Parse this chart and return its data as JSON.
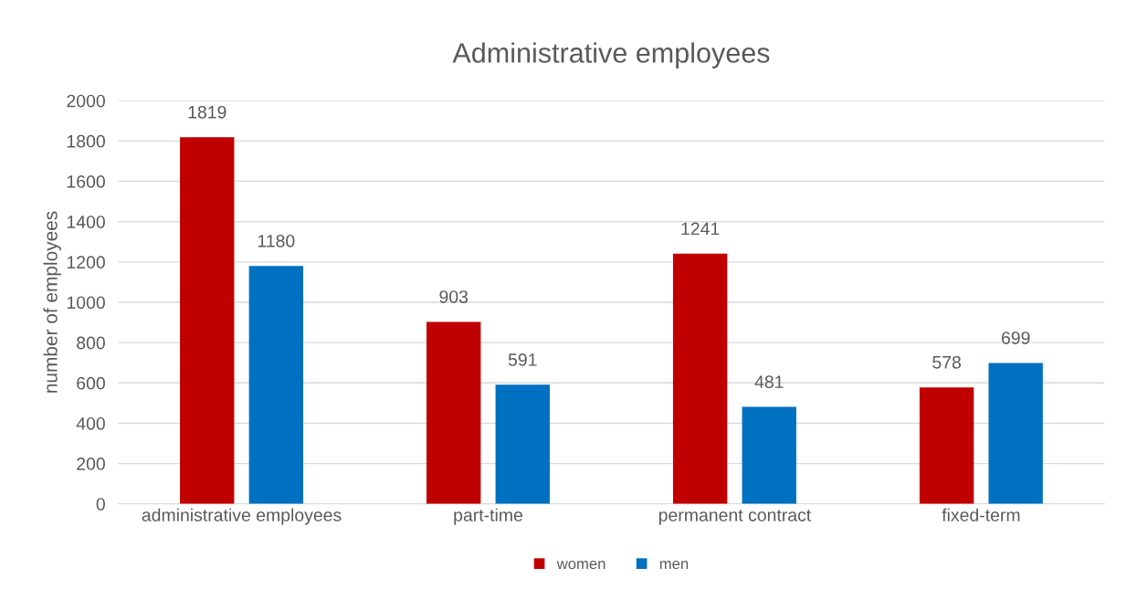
{
  "chart_data": {
    "type": "bar",
    "title": "Administrative employees",
    "ylabel": "number of employees",
    "categories": [
      "administrative employees",
      "part-time",
      "permanent contract",
      "fixed-term"
    ],
    "series": [
      {
        "name": "women",
        "color": "#c00000",
        "values": [
          1819,
          903,
          1241,
          578
        ]
      },
      {
        "name": "men",
        "color": "#0070c0",
        "values": [
          1180,
          591,
          481,
          699
        ]
      }
    ],
    "ylim": [
      0,
      2000
    ],
    "yticks": [
      0,
      200,
      400,
      600,
      800,
      1000,
      1200,
      1400,
      1600,
      1800,
      2000
    ],
    "grid": "y",
    "legend": "bottom",
    "data_labels": true
  }
}
